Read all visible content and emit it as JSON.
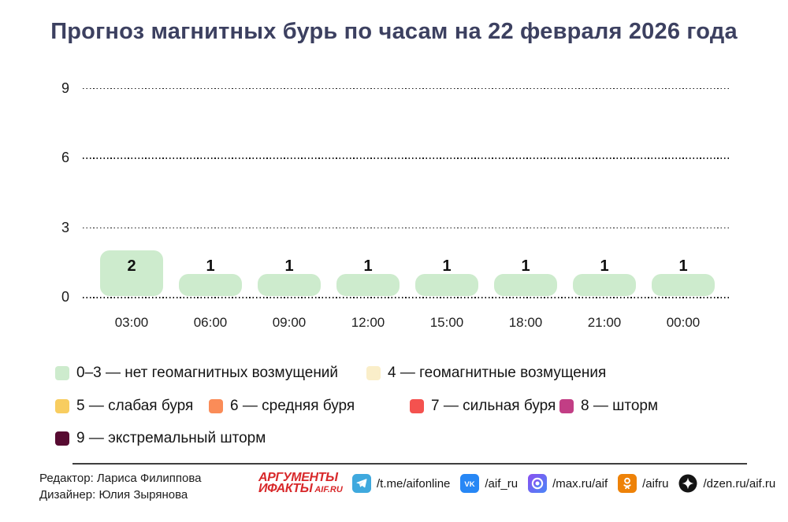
{
  "title": "Прогноз магнитных бурь по часам на 22 февраля 2026 года",
  "title_color": "#3c4060",
  "chart_data": {
    "type": "bar",
    "title": "Прогноз магнитных бурь по часам на 22 февраля 2026 года",
    "categories": [
      "03:00",
      "06:00",
      "09:00",
      "12:00",
      "15:00",
      "18:00",
      "21:00",
      "00:00"
    ],
    "values": [
      2,
      1,
      1,
      1,
      1,
      1,
      1,
      1
    ],
    "xlabel": "",
    "ylabel": "",
    "ylim": [
      0,
      9
    ],
    "yticks": [
      0,
      3,
      6,
      9
    ],
    "grid": "horizontal-dotted",
    "legend_position": "bottom",
    "bar_color": "#cdebcd"
  },
  "legend": {
    "items": [
      {
        "label": "0–3 — нет геомагнитных возмущений",
        "color": "#cdebcd"
      },
      {
        "label": "4 — геомагнитные возмущения",
        "color": "#faeec9"
      },
      {
        "label": "5 — слабая буря",
        "color": "#f8cd60"
      },
      {
        "label": "6 — средняя буря",
        "color": "#fa8c58"
      },
      {
        "label": "7 — сильная буря",
        "color": "#f4524f"
      },
      {
        "label": "8 — шторм",
        "color": "#c23e85"
      },
      {
        "label": "9 — экстремальный шторм",
        "color": "#570b31"
      }
    ]
  },
  "footer": {
    "editor": "Редактор: Лариса Филиппова",
    "designer": "Дизайнер: Юлия Зырянова",
    "logo": {
      "line1": "АРГУМЕНТЫ",
      "line2": "ИФАКТЫ",
      "suffix": "AIF.RU",
      "color": "#d8282a"
    },
    "socials": [
      {
        "icon": "telegram-icon",
        "glyph": "",
        "handle": "/t.me/aifonline",
        "color": "#3fa9de"
      },
      {
        "icon": "vk-icon",
        "glyph": "VK",
        "handle": "/aif_ru",
        "color": "#2787f5"
      },
      {
        "icon": "max-icon",
        "glyph": "",
        "handle": "/max.ru/aif",
        "color": "#8a4ff0"
      },
      {
        "icon": "ok-icon",
        "glyph": "",
        "handle": "/aifru",
        "color": "#ee8208"
      },
      {
        "icon": "dzen-icon",
        "glyph": "",
        "handle": "/dzen.ru/aif.ru",
        "color": "#141414"
      }
    ]
  }
}
